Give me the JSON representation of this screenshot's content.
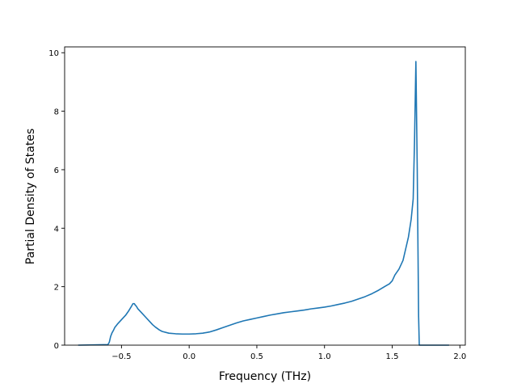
{
  "chart_data": {
    "type": "line",
    "title": "",
    "xlabel": "Frequency (THz)",
    "ylabel": "Partial Density of States",
    "xlim": [
      -0.92,
      2.04
    ],
    "ylim": [
      0,
      10.2
    ],
    "grid": false,
    "legend": "none",
    "x_ticks": [
      -0.5,
      0.0,
      0.5,
      1.0,
      1.5,
      2.0
    ],
    "x_tick_labels": [
      "−0.5",
      "0.0",
      "0.5",
      "1.0",
      "1.5",
      "2.0"
    ],
    "y_ticks": [
      0,
      2,
      4,
      6,
      8,
      10
    ],
    "y_tick_labels": [
      "0",
      "2",
      "4",
      "6",
      "8",
      "10"
    ],
    "series": [
      {
        "color": "#1f77b4",
        "x": [
          -0.82,
          -0.6,
          -0.59,
          -0.58,
          -0.57,
          -0.56,
          -0.55,
          -0.53,
          -0.51,
          -0.49,
          -0.47,
          -0.45,
          -0.43,
          -0.415,
          -0.405,
          -0.4,
          -0.39,
          -0.38,
          -0.35,
          -0.32,
          -0.29,
          -0.27,
          -0.25,
          -0.22,
          -0.2,
          -0.15,
          -0.1,
          -0.05,
          0.0,
          0.05,
          0.1,
          0.15,
          0.2,
          0.25,
          0.3,
          0.35,
          0.4,
          0.45,
          0.5,
          0.55,
          0.6,
          0.65,
          0.7,
          0.75,
          0.8,
          0.85,
          0.9,
          0.95,
          1.0,
          1.05,
          1.1,
          1.15,
          1.2,
          1.25,
          1.3,
          1.35,
          1.4,
          1.45,
          1.48,
          1.5,
          1.52,
          1.55,
          1.58,
          1.6,
          1.62,
          1.64,
          1.655,
          1.665,
          1.675,
          1.685,
          1.695,
          1.7,
          1.92
        ],
        "y": [
          0,
          0.02,
          0.1,
          0.3,
          0.42,
          0.5,
          0.6,
          0.72,
          0.82,
          0.92,
          1.02,
          1.15,
          1.3,
          1.42,
          1.42,
          1.38,
          1.33,
          1.25,
          1.1,
          0.95,
          0.8,
          0.7,
          0.62,
          0.52,
          0.47,
          0.41,
          0.39,
          0.38,
          0.38,
          0.39,
          0.41,
          0.45,
          0.52,
          0.6,
          0.68,
          0.76,
          0.83,
          0.88,
          0.93,
          0.98,
          1.03,
          1.07,
          1.11,
          1.14,
          1.17,
          1.2,
          1.24,
          1.27,
          1.3,
          1.34,
          1.39,
          1.44,
          1.5,
          1.58,
          1.66,
          1.76,
          1.88,
          2.02,
          2.1,
          2.2,
          2.4,
          2.6,
          2.9,
          3.3,
          3.7,
          4.3,
          5.0,
          7.0,
          9.7,
          6.0,
          1.0,
          0,
          0
        ]
      }
    ]
  }
}
